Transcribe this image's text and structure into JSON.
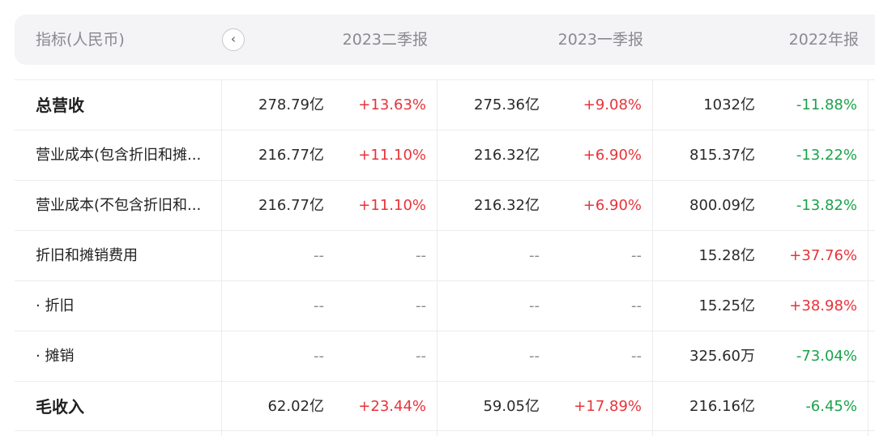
{
  "header": {
    "label": "指标(人民币)",
    "back_icon": "‹",
    "columns": [
      "2023二季报",
      "2023一季报",
      "2022年报"
    ]
  },
  "colors": {
    "up": "#e8333a",
    "down": "#1aa34a"
  },
  "rows": [
    {
      "label": "总营收",
      "bold": true,
      "cells": [
        {
          "v": "278.79亿",
          "p": "+13.63%",
          "dir": "up"
        },
        {
          "v": "275.36亿",
          "p": "+9.08%",
          "dir": "up"
        },
        {
          "v": "1032亿",
          "p": "-11.88%",
          "dir": "down"
        }
      ]
    },
    {
      "label": "营业成本(包含折旧和摊...",
      "bold": false,
      "cells": [
        {
          "v": "216.77亿",
          "p": "+11.10%",
          "dir": "up"
        },
        {
          "v": "216.32亿",
          "p": "+6.90%",
          "dir": "up"
        },
        {
          "v": "815.37亿",
          "p": "-13.22%",
          "dir": "down"
        }
      ]
    },
    {
      "label": "营业成本(不包含折旧和...",
      "bold": false,
      "cells": [
        {
          "v": "216.77亿",
          "p": "+11.10%",
          "dir": "up"
        },
        {
          "v": "216.32亿",
          "p": "+6.90%",
          "dir": "up"
        },
        {
          "v": "800.09亿",
          "p": "-13.82%",
          "dir": "down"
        }
      ]
    },
    {
      "label": "折旧和摊销费用",
      "bold": false,
      "cells": [
        {
          "v": "--",
          "p": "--",
          "dir": "none"
        },
        {
          "v": "--",
          "p": "--",
          "dir": "none"
        },
        {
          "v": "15.28亿",
          "p": "+37.76%",
          "dir": "up"
        }
      ]
    },
    {
      "label": "· 折旧",
      "bold": false,
      "cells": [
        {
          "v": "--",
          "p": "--",
          "dir": "none"
        },
        {
          "v": "--",
          "p": "--",
          "dir": "none"
        },
        {
          "v": "15.25亿",
          "p": "+38.98%",
          "dir": "up"
        }
      ]
    },
    {
      "label": "· 摊销",
      "bold": false,
      "cells": [
        {
          "v": "--",
          "p": "--",
          "dir": "none"
        },
        {
          "v": "--",
          "p": "--",
          "dir": "none"
        },
        {
          "v": "325.60万",
          "p": "-73.04%",
          "dir": "down"
        }
      ]
    },
    {
      "label": "毛收入",
      "bold": true,
      "cells": [
        {
          "v": "62.02亿",
          "p": "+23.44%",
          "dir": "up"
        },
        {
          "v": "59.05亿",
          "p": "+17.89%",
          "dir": "up"
        },
        {
          "v": "216.16亿",
          "p": "-6.45%",
          "dir": "down"
        }
      ]
    }
  ]
}
